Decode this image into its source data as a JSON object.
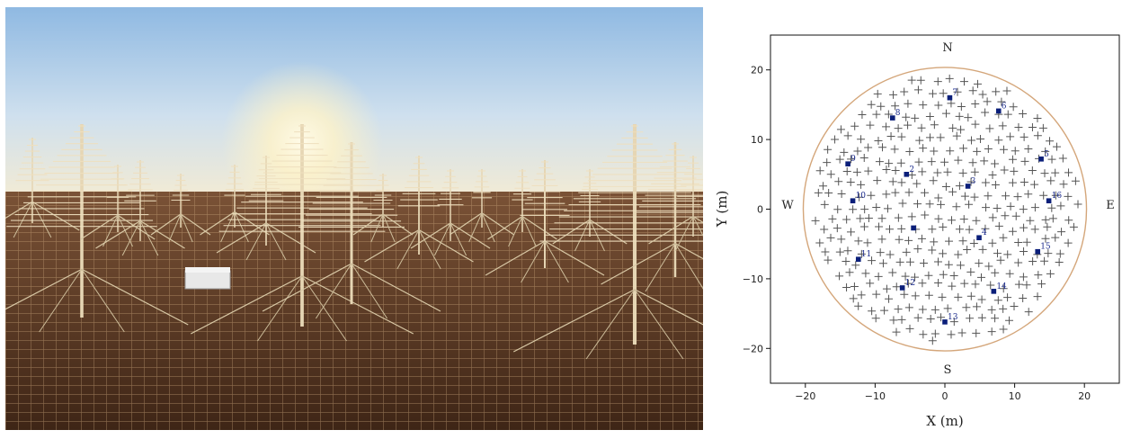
{
  "photo": {
    "subject": "antenna-array-photo",
    "colors": {
      "sky_top": "#9ec3e6",
      "sky_horizon": "#f4ead0",
      "ground": "#5a3a24",
      "metal": "#d8c8a8"
    }
  },
  "chart_data": {
    "type": "scatter",
    "xlabel": "X (m)",
    "ylabel": "Y (m)",
    "xlim": [
      -25,
      25
    ],
    "ylim": [
      -25,
      25
    ],
    "xticks": [
      -20,
      -10,
      0,
      10,
      20
    ],
    "yticks": [
      -20,
      -10,
      0,
      10,
      20
    ],
    "xtick_labels": [
      "−20",
      "−10",
      "0",
      "10",
      "20"
    ],
    "ytick_labels": [
      "−20",
      "−10",
      "0",
      "10",
      "20"
    ],
    "grid": false,
    "compass": {
      "north": "N",
      "south": "S",
      "east": "E",
      "west": "W"
    },
    "boundary": {
      "shape": "circle",
      "center": [
        0,
        0
      ],
      "radius": 20.3,
      "color": "#d4a67a"
    },
    "antenna_marker": {
      "shape": "plus",
      "color": "#555555"
    },
    "highlight_color": "#0b1f7a",
    "highlighted_tiles": [
      {
        "label": "2",
        "x": -5.5,
        "y": 5.0
      },
      {
        "label": "3",
        "x": 3.3,
        "y": 3.3
      },
      {
        "label": "4",
        "x": 4.9,
        "y": -4.1
      },
      {
        "label": "5",
        "x": 13.8,
        "y": 7.2
      },
      {
        "label": "6",
        "x": 7.7,
        "y": 14.1
      },
      {
        "label": "7",
        "x": 0.7,
        "y": 16.0
      },
      {
        "label": "8",
        "x": -7.5,
        "y": 13.1
      },
      {
        "label": "9",
        "x": -13.9,
        "y": 6.5
      },
      {
        "label": "10",
        "x": -13.2,
        "y": 1.2
      },
      {
        "label": "11",
        "x": -12.4,
        "y": -7.2
      },
      {
        "label": "12",
        "x": -6.1,
        "y": -11.3
      },
      {
        "label": "13",
        "x": 0.0,
        "y": -16.2
      },
      {
        "label": "14",
        "x": 7.0,
        "y": -11.8
      },
      {
        "label": "15",
        "x": 13.3,
        "y": -6.1
      },
      {
        "label": "16",
        "x": 14.9,
        "y": 1.2
      },
      {
        "label": "",
        "x": -4.5,
        "y": -2.7
      }
    ],
    "antenna_grid": {
      "spacing_m": 1.9,
      "jitter_m": 0.45,
      "radius_m": 19.2
    }
  }
}
